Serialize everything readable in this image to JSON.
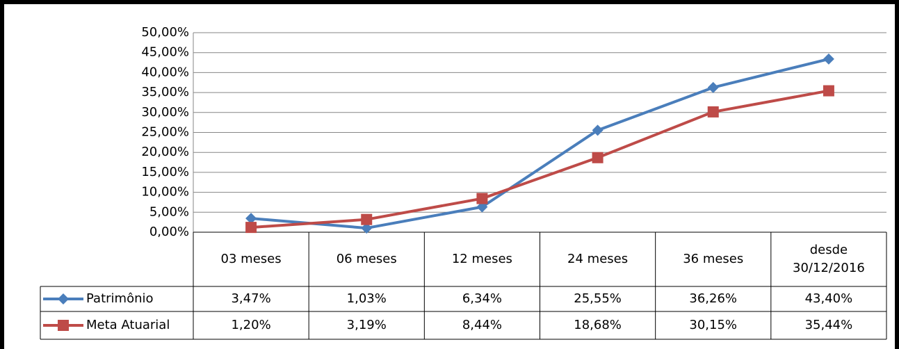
{
  "chart_data": {
    "type": "line",
    "categories": [
      "03 meses",
      "06 meses",
      "12 meses",
      "24 meses",
      "36 meses",
      "desde\n30/12/2016"
    ],
    "series": [
      {
        "name": "Patrimônio",
        "color": "#4a7ebb",
        "marker": "diamond",
        "values": [
          3.47,
          1.03,
          6.34,
          25.55,
          36.26,
          43.4
        ],
        "value_labels": [
          "3,47%",
          "1,03%",
          "6,34%",
          "25,55%",
          "36,26%",
          "43,40%"
        ]
      },
      {
        "name": "Meta Atuarial",
        "color": "#be4b48",
        "marker": "square",
        "values": [
          1.2,
          3.19,
          8.44,
          18.68,
          30.15,
          35.44
        ],
        "value_labels": [
          "1,20%",
          "3,19%",
          "8,44%",
          "18,68%",
          "30,15%",
          "35,44%"
        ]
      }
    ],
    "ylim": [
      0,
      50
    ],
    "yticks": [
      {
        "value": 0,
        "label": "0,00%"
      },
      {
        "value": 5,
        "label": "5,00%"
      },
      {
        "value": 10,
        "label": "10,00%"
      },
      {
        "value": 15,
        "label": "15,00%"
      },
      {
        "value": 20,
        "label": "20,00%"
      },
      {
        "value": 25,
        "label": "25,00%"
      },
      {
        "value": 30,
        "label": "30,00%"
      },
      {
        "value": 35,
        "label": "35,00%"
      },
      {
        "value": 40,
        "label": "40,00%"
      },
      {
        "value": 45,
        "label": "45,00%"
      },
      {
        "value": 50,
        "label": "50,00%"
      }
    ],
    "grid": true
  }
}
